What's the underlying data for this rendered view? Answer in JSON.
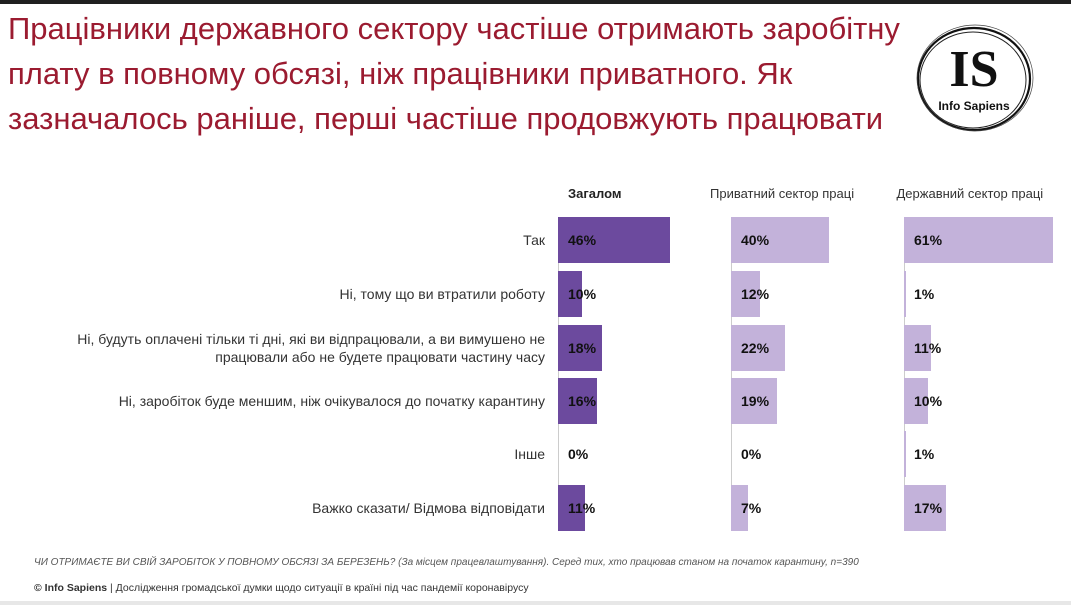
{
  "title": "Працівники державного сектору частіше отримають заробітну плату в повному обсязі, ніж працівники приватного. Як зазначалось раніше, перші частіше продовжують працювати",
  "logo": {
    "letters": "IS",
    "name": "Info Sapiens"
  },
  "colors": {
    "title": "#9b1b30",
    "overall": "#6c4a9e",
    "sector": "#c3b2da"
  },
  "chart_data": {
    "type": "bar",
    "orientation": "horizontal",
    "categories": [
      "Так",
      "Ні, тому що ви втратили роботу",
      "Ні, будуть оплачені тільки ті дні, які ви відпрацювали, а ви вимушено не працювали або не будете працювати частину часу",
      "Ні, заробіток буде меншим, ніж очікувалося до початку карантину",
      "Інше",
      "Важко сказати/ Відмова відповідати"
    ],
    "series": [
      {
        "name": "Загалом",
        "values": [
          46,
          10,
          18,
          16,
          0,
          11
        ],
        "labels": [
          "46%",
          "10%",
          "18%",
          "16%",
          "0%",
          "11%"
        ]
      },
      {
        "name": "Приватний сектор праці",
        "values": [
          40,
          12,
          22,
          19,
          0,
          7
        ],
        "labels": [
          "40%",
          "12%",
          "22%",
          "19%",
          "0%",
          "7%"
        ]
      },
      {
        "name": "Державний сектор праці",
        "values": [
          61,
          1,
          11,
          10,
          1,
          17
        ],
        "labels": [
          "61%",
          "1%",
          "11%",
          "10%",
          "1%",
          "17%"
        ]
      }
    ],
    "unit": "%",
    "xlim": [
      0,
      61
    ],
    "grid": false,
    "legend": "top (column headers)"
  },
  "footnote": "ЧИ ОТРИМАЄТЕ ВИ СВІЙ ЗАРОБІТОК У ПОВНОМУ ОБСЯЗІ ЗА БЕРЕЗЕНЬ? (За місцем працевлаштування). Серед тих, хто працював станом на початок карантину, n=390",
  "copyright": {
    "brand": "© Info Sapiens",
    "text": "| Дослідження громадської думки щодо ситуації в країні під час пандемії коронавірусу"
  }
}
